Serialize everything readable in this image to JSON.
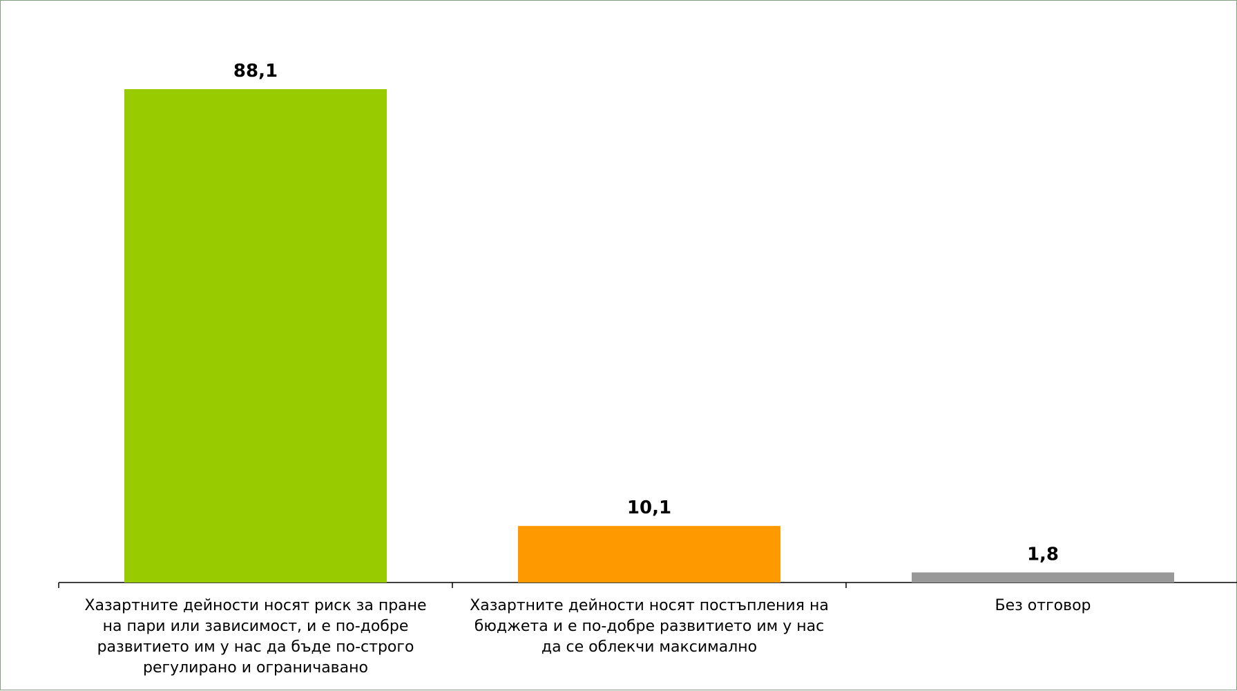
{
  "chart_data": {
    "type": "bar",
    "title": "",
    "xlabel": "",
    "ylabel": "",
    "ylim": [
      0,
      100
    ],
    "grid": false,
    "legend": "none",
    "categories": [
      [
        "Хазартните дейности носят риск за пране",
        "на пари или зависимост, и  е по-добре",
        "развитието им у нас да бъде по-строго",
        "регулирано и ограничавано"
      ],
      [
        "Хазартните дейности носят постъпления на",
        "бюджета и е по-добре развитието им у нас",
        "да се облекчи максимално"
      ],
      [
        "Без отговор"
      ]
    ],
    "values": [
      88.1,
      10.1,
      1.8
    ],
    "value_labels": [
      "88,1",
      "10,1",
      "1,8"
    ],
    "colors": [
      "#99cc00",
      "#ff9900",
      "#999999"
    ]
  }
}
